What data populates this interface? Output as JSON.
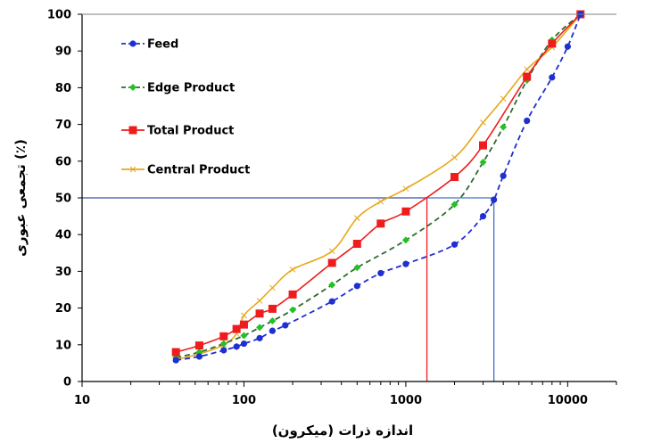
{
  "chart_data": {
    "type": "line",
    "x_scale": "log",
    "xlim": [
      10,
      20000
    ],
    "ylim": [
      0,
      100
    ],
    "xlabel": "اندازه ذرات (میکرون)",
    "ylabel": "تجمعی عبوری (٪)",
    "x_ticks": [
      10,
      100,
      1000,
      10000
    ],
    "x_tick_labels": [
      "10",
      "100",
      "1000",
      "10000"
    ],
    "y_ticks": [
      0,
      10,
      20,
      30,
      40,
      50,
      60,
      70,
      80,
      90,
      100
    ],
    "y_tick_labels": [
      "0",
      "10",
      "20",
      "30",
      "40",
      "50",
      "60",
      "70",
      "80",
      "90",
      "100"
    ],
    "grid": false,
    "legend_position": "top-left",
    "series": [
      {
        "name": "Feed",
        "color": "#1f2fd0",
        "line_style": "dashed",
        "marker": "circle",
        "x": [
          38,
          53,
          75,
          90,
          100,
          125,
          150,
          180,
          350,
          500,
          700,
          1000,
          2000,
          3000,
          3500,
          4000,
          5600,
          8000,
          10000,
          12000
        ],
        "y": [
          5.8,
          6.8,
          8.5,
          9.5,
          10.3,
          11.8,
          13.8,
          15.3,
          21.8,
          26.0,
          29.5,
          32.0,
          37.3,
          45.0,
          49.5,
          56.0,
          71.0,
          82.8,
          91.2,
          100
        ]
      },
      {
        "name": "Edge Product",
        "color": "#2f6b2f",
        "line_style": "dashed",
        "marker": "diamond",
        "x": [
          38,
          53,
          75,
          100,
          125,
          150,
          200,
          350,
          500,
          1000,
          2000,
          3000,
          4000,
          5600,
          8000,
          12000
        ],
        "y": [
          6.5,
          8.0,
          10.3,
          12.5,
          14.7,
          16.5,
          19.5,
          26.3,
          31.0,
          38.5,
          48.2,
          59.7,
          69.3,
          82.0,
          93.0,
          100
        ]
      },
      {
        "name": "Total Product",
        "color": "#ee1c1c",
        "line_style": "solid",
        "marker": "square",
        "x": [
          38,
          53,
          75,
          90,
          100,
          125,
          150,
          200,
          350,
          500,
          700,
          1000,
          2000,
          3000,
          5600,
          8000,
          12000
        ],
        "y": [
          8.0,
          9.8,
          12.3,
          14.3,
          15.5,
          18.5,
          19.8,
          23.7,
          32.3,
          37.5,
          43.0,
          46.3,
          55.7,
          64.3,
          83.0,
          92.0,
          100
        ]
      },
      {
        "name": "Central Product",
        "color": "#e6a817",
        "line_style": "solid",
        "marker": "x",
        "x": [
          38,
          53,
          75,
          90,
          100,
          125,
          150,
          200,
          350,
          500,
          700,
          1000,
          2000,
          3000,
          4000,
          5600,
          8000,
          12000
        ],
        "y": [
          6.0,
          7.5,
          10.0,
          13.0,
          18.0,
          22.0,
          25.5,
          30.5,
          35.5,
          44.5,
          49.0,
          52.5,
          61.0,
          70.5,
          77.0,
          85.0,
          91.0,
          100
        ]
      }
    ],
    "annotations": [
      {
        "series": "Total Product",
        "color": "#ee1c1c",
        "y": 50,
        "x": 1350
      },
      {
        "series": "Feed",
        "color": "#4472c4",
        "y": 50,
        "x": 3500
      }
    ]
  }
}
